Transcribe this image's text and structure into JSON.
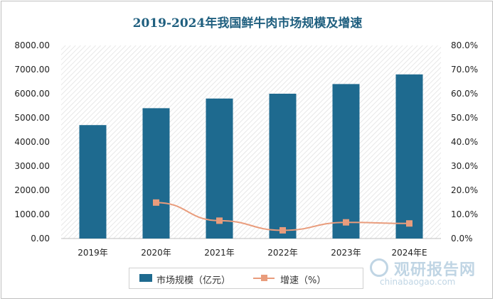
{
  "chart_data": {
    "type": "bar",
    "title": "2019-2024年我国鲜牛肉市场规模及增速",
    "categories": [
      "2019年",
      "2020年",
      "2021年",
      "2022年",
      "2023年",
      "2024年E"
    ],
    "series": [
      {
        "name": "市场规模（亿元）",
        "type": "bar",
        "axis": "left",
        "color": "#1e6a8f",
        "values": [
          4700,
          5400,
          5800,
          6000,
          6400,
          6800
        ]
      },
      {
        "name": "增速（%）",
        "type": "line",
        "axis": "right",
        "color": "#e99c7c",
        "values": [
          null,
          14.9,
          7.4,
          3.4,
          6.7,
          6.25
        ]
      }
    ],
    "ylim_left": [
      0,
      8000
    ],
    "ylim_right": [
      0,
      80
    ],
    "yticks_left": [
      "0.00",
      "1000.00",
      "2000.00",
      "3000.00",
      "4000.00",
      "5000.00",
      "6000.00",
      "7000.00",
      "8000.00"
    ],
    "yticks_right": [
      "0.0%",
      "10.0%",
      "20.0%",
      "30.0%",
      "40.0%",
      "50.0%",
      "60.0%",
      "70.0%",
      "80.0%"
    ],
    "legend_position": "bottom",
    "plot_background": "hatched"
  },
  "watermark": {
    "text_cn": "观研报告网",
    "text_en": "chinabaogao.com"
  }
}
